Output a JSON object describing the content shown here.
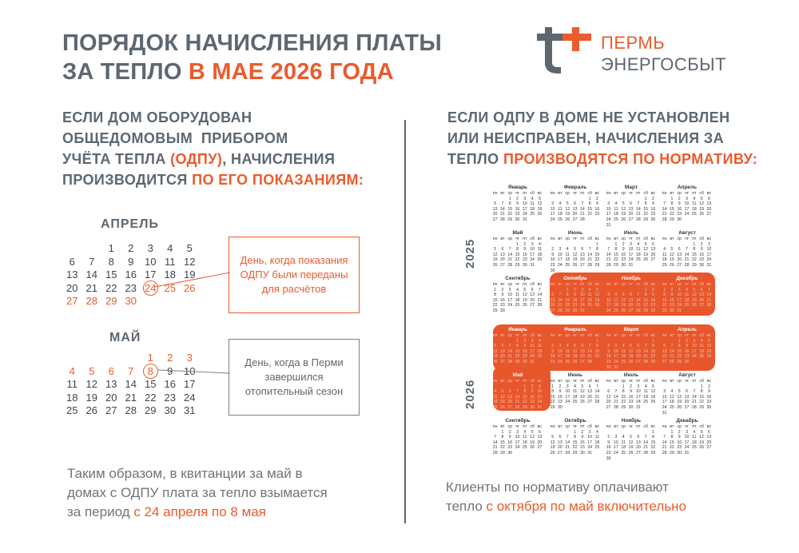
{
  "header": {
    "title_line1": "ПОРЯДОК НАЧИСЛЕНИЯ ПЛАТЫ",
    "title_line2_prefix": "ЗА ТЕПЛО ",
    "title_line2_accent": "В МАЕ 2026 ГОДА"
  },
  "logo": {
    "line1": "ПЕРМЬ",
    "line2": "ЭНЕРГОСБЫТ"
  },
  "left": {
    "lead_l1": "ЕСЛИ ДОМ ОБОРУДОВАН",
    "lead_l2": "ОБЩЕДОМОВЫМ  ПРИБОРОМ",
    "lead_l3_prefix": "УЧЁТА ТЕПЛА ",
    "lead_l3_accent": "(ОДПУ)",
    "lead_l3_suffix": ", НАЧИСЛЕНИЯ",
    "lead_l4_prefix": "ПРОИЗВОДИТСЯ ",
    "lead_l4_accent": "ПО ЕГО ПОКАЗАНИЯМ:",
    "april": {
      "title": "АПРЕЛЬ",
      "cells": [
        "",
        "",
        "1",
        "2",
        "3",
        "4",
        "5",
        "6",
        "7",
        "8",
        "9",
        "10",
        "11",
        "12",
        "13",
        "14",
        "15",
        "16",
        "17",
        "18",
        "19",
        "20",
        "21",
        "22",
        "23",
        "24",
        "25",
        "26",
        "27",
        "28",
        "29",
        "30",
        "",
        "",
        ""
      ],
      "red_from": "24"
    },
    "may": {
      "title": "МАЙ",
      "cells": [
        "",
        "",
        "",
        "",
        "1",
        "2",
        "3",
        "4",
        "5",
        "6",
        "7",
        "8",
        "9",
        "10",
        "11",
        "12",
        "13",
        "14",
        "15",
        "16",
        "17",
        "18",
        "19",
        "20",
        "21",
        "22",
        "23",
        "24",
        "25",
        "26",
        "27",
        "28",
        "29",
        "30",
        "31"
      ],
      "red_until": "8"
    },
    "note_april": "День, когда показания ОДПУ были переданы для расчётов",
    "note_may": "День, когда в Перми завершился отопительный сезон",
    "bottom_l1": "Таким образом, в квитанции за май в",
    "bottom_l2": "домах с ОДПУ плата за тепло взымается",
    "bottom_l3_prefix": "за период ",
    "bottom_l3_accent": "с 24 апреля по 8 мая"
  },
  "right": {
    "lead_l1": "ЕСЛИ ОДПУ В ДОМЕ НЕ УСТАНОВЛЕН",
    "lead_l2": "ИЛИ НЕИСПРАВЕН, НАЧИСЛЕНИЯ ЗА",
    "lead_l3_prefix": "ТЕПЛО ",
    "lead_l3_accent": "ПРОИЗВОДЯТСЯ ПО НОРМАТИВУ:",
    "year_2025": "2025",
    "year_2026": "2026",
    "months_2025": [
      "Январь",
      "Февраль",
      "Март",
      "Апрель",
      "Май",
      "Июнь",
      "Июль",
      "Август",
      "Сентябрь",
      "Октябрь",
      "Ноябрь",
      "Декабрь"
    ],
    "months_2026": [
      "Январь",
      "Февраль",
      "Март",
      "Апрель",
      "Май",
      "Июнь",
      "Июль",
      "Август",
      "Сентябрь",
      "Октябрь",
      "Ноябрь",
      "Декабрь"
    ],
    "weekdays": [
      "пн",
      "вт",
      "ср",
      "чт",
      "пт",
      "сб",
      "вс"
    ],
    "bottom_l1": "Клиенты по нормативу оплачивают",
    "bottom_l2_prefix": "тепло ",
    "bottom_l2_accent": "с октября по май включительно"
  },
  "colors": {
    "accent": "#ea5b2d",
    "text": "#5d6771"
  }
}
